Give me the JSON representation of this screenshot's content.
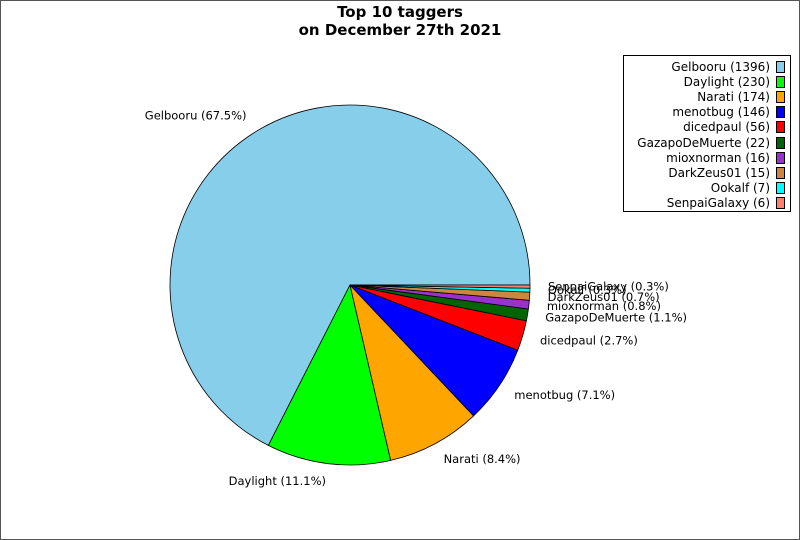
{
  "chart_data": {
    "type": "pie",
    "title_lines": [
      "Top 10 taggers",
      "on December 27th 2021"
    ],
    "legend_position": "top-right",
    "slices": [
      {
        "name": "Gelbooru",
        "count": 1396,
        "percent": 67.5,
        "legend": "Gelbooru (1396)",
        "label": "Gelbooru (67.5%)",
        "color": "#87ceeb"
      },
      {
        "name": "Daylight",
        "count": 230,
        "percent": 11.1,
        "legend": "Daylight (230)",
        "label": "Daylight (11.1%)",
        "color": "#00ff00"
      },
      {
        "name": "Narati",
        "count": 174,
        "percent": 8.4,
        "legend": "Narati (174)",
        "label": "Narati (8.4%)",
        "color": "#ffa500"
      },
      {
        "name": "menotbug",
        "count": 146,
        "percent": 7.1,
        "legend": "menotbug (146)",
        "label": "menotbug (7.1%)",
        "color": "#0000ff"
      },
      {
        "name": "dicedpaul",
        "count": 56,
        "percent": 2.7,
        "legend": "dicedpaul (56)",
        "label": "dicedpaul (2.7%)",
        "color": "#ff0000"
      },
      {
        "name": "GazapoDeMuerte",
        "count": 22,
        "percent": 1.1,
        "legend": "GazapoDeMuerte (22)",
        "label": "GazapoDeMuerte (1.1%)",
        "color": "#006400"
      },
      {
        "name": "mioxnorman",
        "count": 16,
        "percent": 0.8,
        "legend": "mioxnorman (16)",
        "label": "mioxnorman (0.8%)",
        "color": "#9932cc"
      },
      {
        "name": "DarkZeus01",
        "count": 15,
        "percent": 0.7,
        "legend": "DarkZeus01 (15)",
        "label": "DarkZeus01 (0.7%)",
        "color": "#cd853f"
      },
      {
        "name": "Ookalf",
        "count": 7,
        "percent": 0.3,
        "legend": "Ookalf (7)",
        "label": "Ookalf (0.3%)",
        "color": "#00ffff"
      },
      {
        "name": "SenpaiGalaxy",
        "count": 6,
        "percent": 0.3,
        "legend": "SenpaiGalaxy (6)",
        "label": "SenpaiGalaxy (0.3%)",
        "color": "#fa8072"
      }
    ]
  }
}
